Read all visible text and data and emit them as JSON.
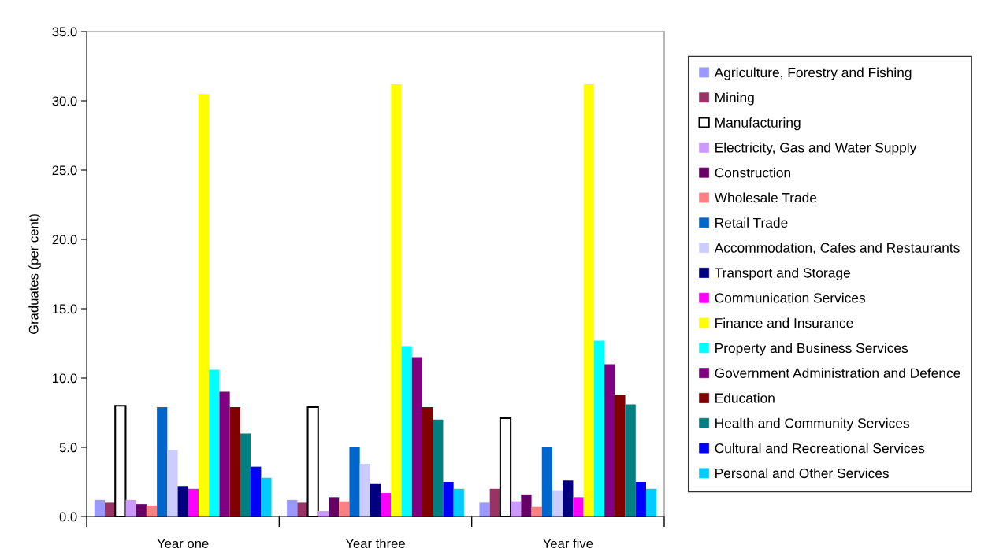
{
  "chart_data": {
    "type": "bar",
    "ylabel": "Graduates (per cent)",
    "categories": [
      "Year one",
      "Year three",
      "Year five"
    ],
    "ylim": [
      0,
      35
    ],
    "yticks": [
      {
        "value": 0,
        "label": "0.0"
      },
      {
        "value": 5,
        "label": "5.0"
      },
      {
        "value": 10,
        "label": "10.0"
      },
      {
        "value": 15,
        "label": "15.0"
      },
      {
        "value": 20,
        "label": "20.0"
      },
      {
        "value": 25,
        "label": "25.0"
      },
      {
        "value": 30,
        "label": "30.0"
      },
      {
        "value": 35,
        "label": "35.0"
      }
    ],
    "grid": false,
    "legend": "right",
    "series": [
      {
        "name": "Agriculture, Forestry and Fishing",
        "color": "#9999ff",
        "values": [
          1.2,
          1.2,
          1.0
        ]
      },
      {
        "name": "Mining",
        "color": "#993366",
        "values": [
          1.0,
          1.0,
          2.0
        ]
      },
      {
        "name": "Manufacturing",
        "color": "#ffffff",
        "values": [
          8.0,
          7.9,
          7.1
        ]
      },
      {
        "name": "Electricity, Gas and Water Supply",
        "color": "#cc99ff",
        "values": [
          1.2,
          0.4,
          1.1
        ]
      },
      {
        "name": "Construction",
        "color": "#660066",
        "values": [
          0.9,
          1.4,
          1.6
        ]
      },
      {
        "name": "Wholesale Trade",
        "color": "#ff8080",
        "values": [
          0.8,
          1.1,
          0.7
        ]
      },
      {
        "name": "Retail Trade",
        "color": "#0066cc",
        "values": [
          7.9,
          5.0,
          5.0
        ]
      },
      {
        "name": "Accommodation, Cafes and Restaurants",
        "color": "#ccccff",
        "values": [
          4.8,
          3.8,
          1.9
        ]
      },
      {
        "name": "Transport and Storage",
        "color": "#000080",
        "values": [
          2.2,
          2.4,
          2.6
        ]
      },
      {
        "name": "Communication Services",
        "color": "#ff00ff",
        "values": [
          2.0,
          1.7,
          1.4
        ]
      },
      {
        "name": "Finance and Insurance",
        "color": "#ffff00",
        "values": [
          30.5,
          31.2,
          31.2
        ]
      },
      {
        "name": "Property and Business Services",
        "color": "#00ffff",
        "values": [
          10.6,
          12.3,
          12.7
        ]
      },
      {
        "name": "Government Administration and Defence",
        "color": "#800080",
        "values": [
          9.0,
          11.5,
          11.0
        ]
      },
      {
        "name": "Education",
        "color": "#800000",
        "values": [
          7.9,
          7.9,
          8.8
        ]
      },
      {
        "name": "Health and Community Services",
        "color": "#008080",
        "values": [
          6.0,
          7.0,
          8.1
        ]
      },
      {
        "name": "Cultural and Recreational Services",
        "color": "#0000ff",
        "values": [
          3.6,
          2.5,
          2.5
        ]
      },
      {
        "name": "Personal and Other Services",
        "color": "#00ccff",
        "values": [
          2.8,
          2.0,
          2.0
        ]
      }
    ]
  }
}
